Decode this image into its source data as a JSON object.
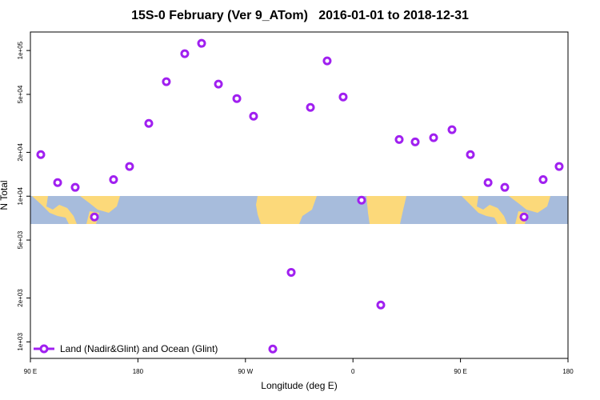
{
  "chart_data": {
    "type": "scatter",
    "title": "15S-0 February (Ver 9_ATom)   2016-01-01 to 2018-12-31",
    "x_label": "Longitude (deg E)",
    "y_label": "N Total",
    "x": [
      98.7,
      112.8,
      127.5,
      143.6,
      159.6,
      173,
      189.1,
      203.8,
      219.2,
      233.3,
      247.4,
      262.8,
      276.8,
      292.9,
      308.3,
      324.4,
      338.4,
      351.8,
      367.2,
      383.3,
      398.7,
      412.1,
      427.5,
      442.9,
      458.3,
      473.1,
      487.1,
      503.2,
      519.2,
      532.6
    ],
    "series": [
      {
        "name": "Land (Nadir&Glint) and Ocean (Glint)",
        "color": "#a020f0",
        "values": [
          19300,
          12400,
          11500,
          7200,
          13000,
          16000,
          31600,
          61100,
          95100,
          112000,
          58800,
          46800,
          35400,
          893,
          3000,
          40700,
          84900,
          48000,
          9390,
          1790,
          24500,
          23600,
          25200,
          28600,
          19300,
          12400,
          11500,
          7200,
          13000,
          16000
        ]
      }
    ],
    "xlim": [
      90,
      540
    ],
    "xticks": [
      {
        "value": 90,
        "label": "90 E"
      },
      180,
      {
        "value": 270,
        "label": "90 W"
      },
      {
        "value": 360,
        "label": "0"
      },
      {
        "value": 450,
        "label": "90 E"
      },
      {
        "value": 540,
        "label": "180"
      }
    ],
    "ylim": [
      770,
      134000
    ],
    "log_y": true,
    "yticks": [
      {
        "value": 1000,
        "label": "1e+03"
      },
      {
        "value": 2000,
        "label": "2e+03"
      },
      {
        "value": 5000,
        "label": "5e+03"
      },
      {
        "value": 10000,
        "label": "1e+04"
      },
      {
        "value": 20000,
        "label": "2e+04"
      },
      {
        "value": 50000,
        "label": "5e+04"
      },
      {
        "value": 100000,
        "label": "1e+05"
      }
    ],
    "legend": "bottom-left"
  }
}
